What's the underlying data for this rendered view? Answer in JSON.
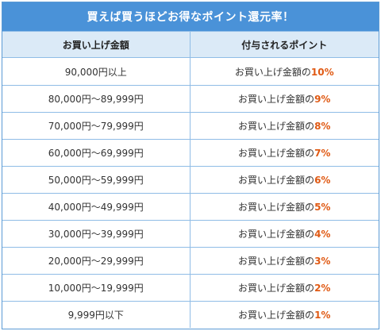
{
  "title": "買えば買うほどお得なポイント還元率！",
  "headers": {
    "amount": "お買い上げ金額",
    "points": "付与されるポイント"
  },
  "rows": [
    {
      "amount": "90,000円以上",
      "prefix": "お買い上げ金額の",
      "rate": "10%"
    },
    {
      "amount": "80,000円～89,999円",
      "prefix": "お買い上げ金額の",
      "rate": "9%"
    },
    {
      "amount": "70,000円～79,999円",
      "prefix": "お買い上げ金額の",
      "rate": "8%"
    },
    {
      "amount": "60,000円～69,999円",
      "prefix": "お買い上げ金額の",
      "rate": "7%"
    },
    {
      "amount": "50,000円～59,999円",
      "prefix": "お買い上げ金額の",
      "rate": "6%"
    },
    {
      "amount": "40,000円～49,999円",
      "prefix": "お買い上げ金額の",
      "rate": "5%"
    },
    {
      "amount": "30,000円～39,999円",
      "prefix": "お買い上げ金額の",
      "rate": "4%"
    },
    {
      "amount": "20,000円～29,999円",
      "prefix": "お買い上げ金額の",
      "rate": "3%"
    },
    {
      "amount": "10,000円～19,999円",
      "prefix": "お買い上げ金額の",
      "rate": "2%"
    },
    {
      "amount": "9,999円以下",
      "prefix": "お買い上げ金額の",
      "rate": "1%"
    }
  ],
  "colors": {
    "header_bg": "#4a92d8",
    "subheader_bg": "#dbeaf7",
    "border": "#8fbce6",
    "accent": "#e05a14"
  }
}
